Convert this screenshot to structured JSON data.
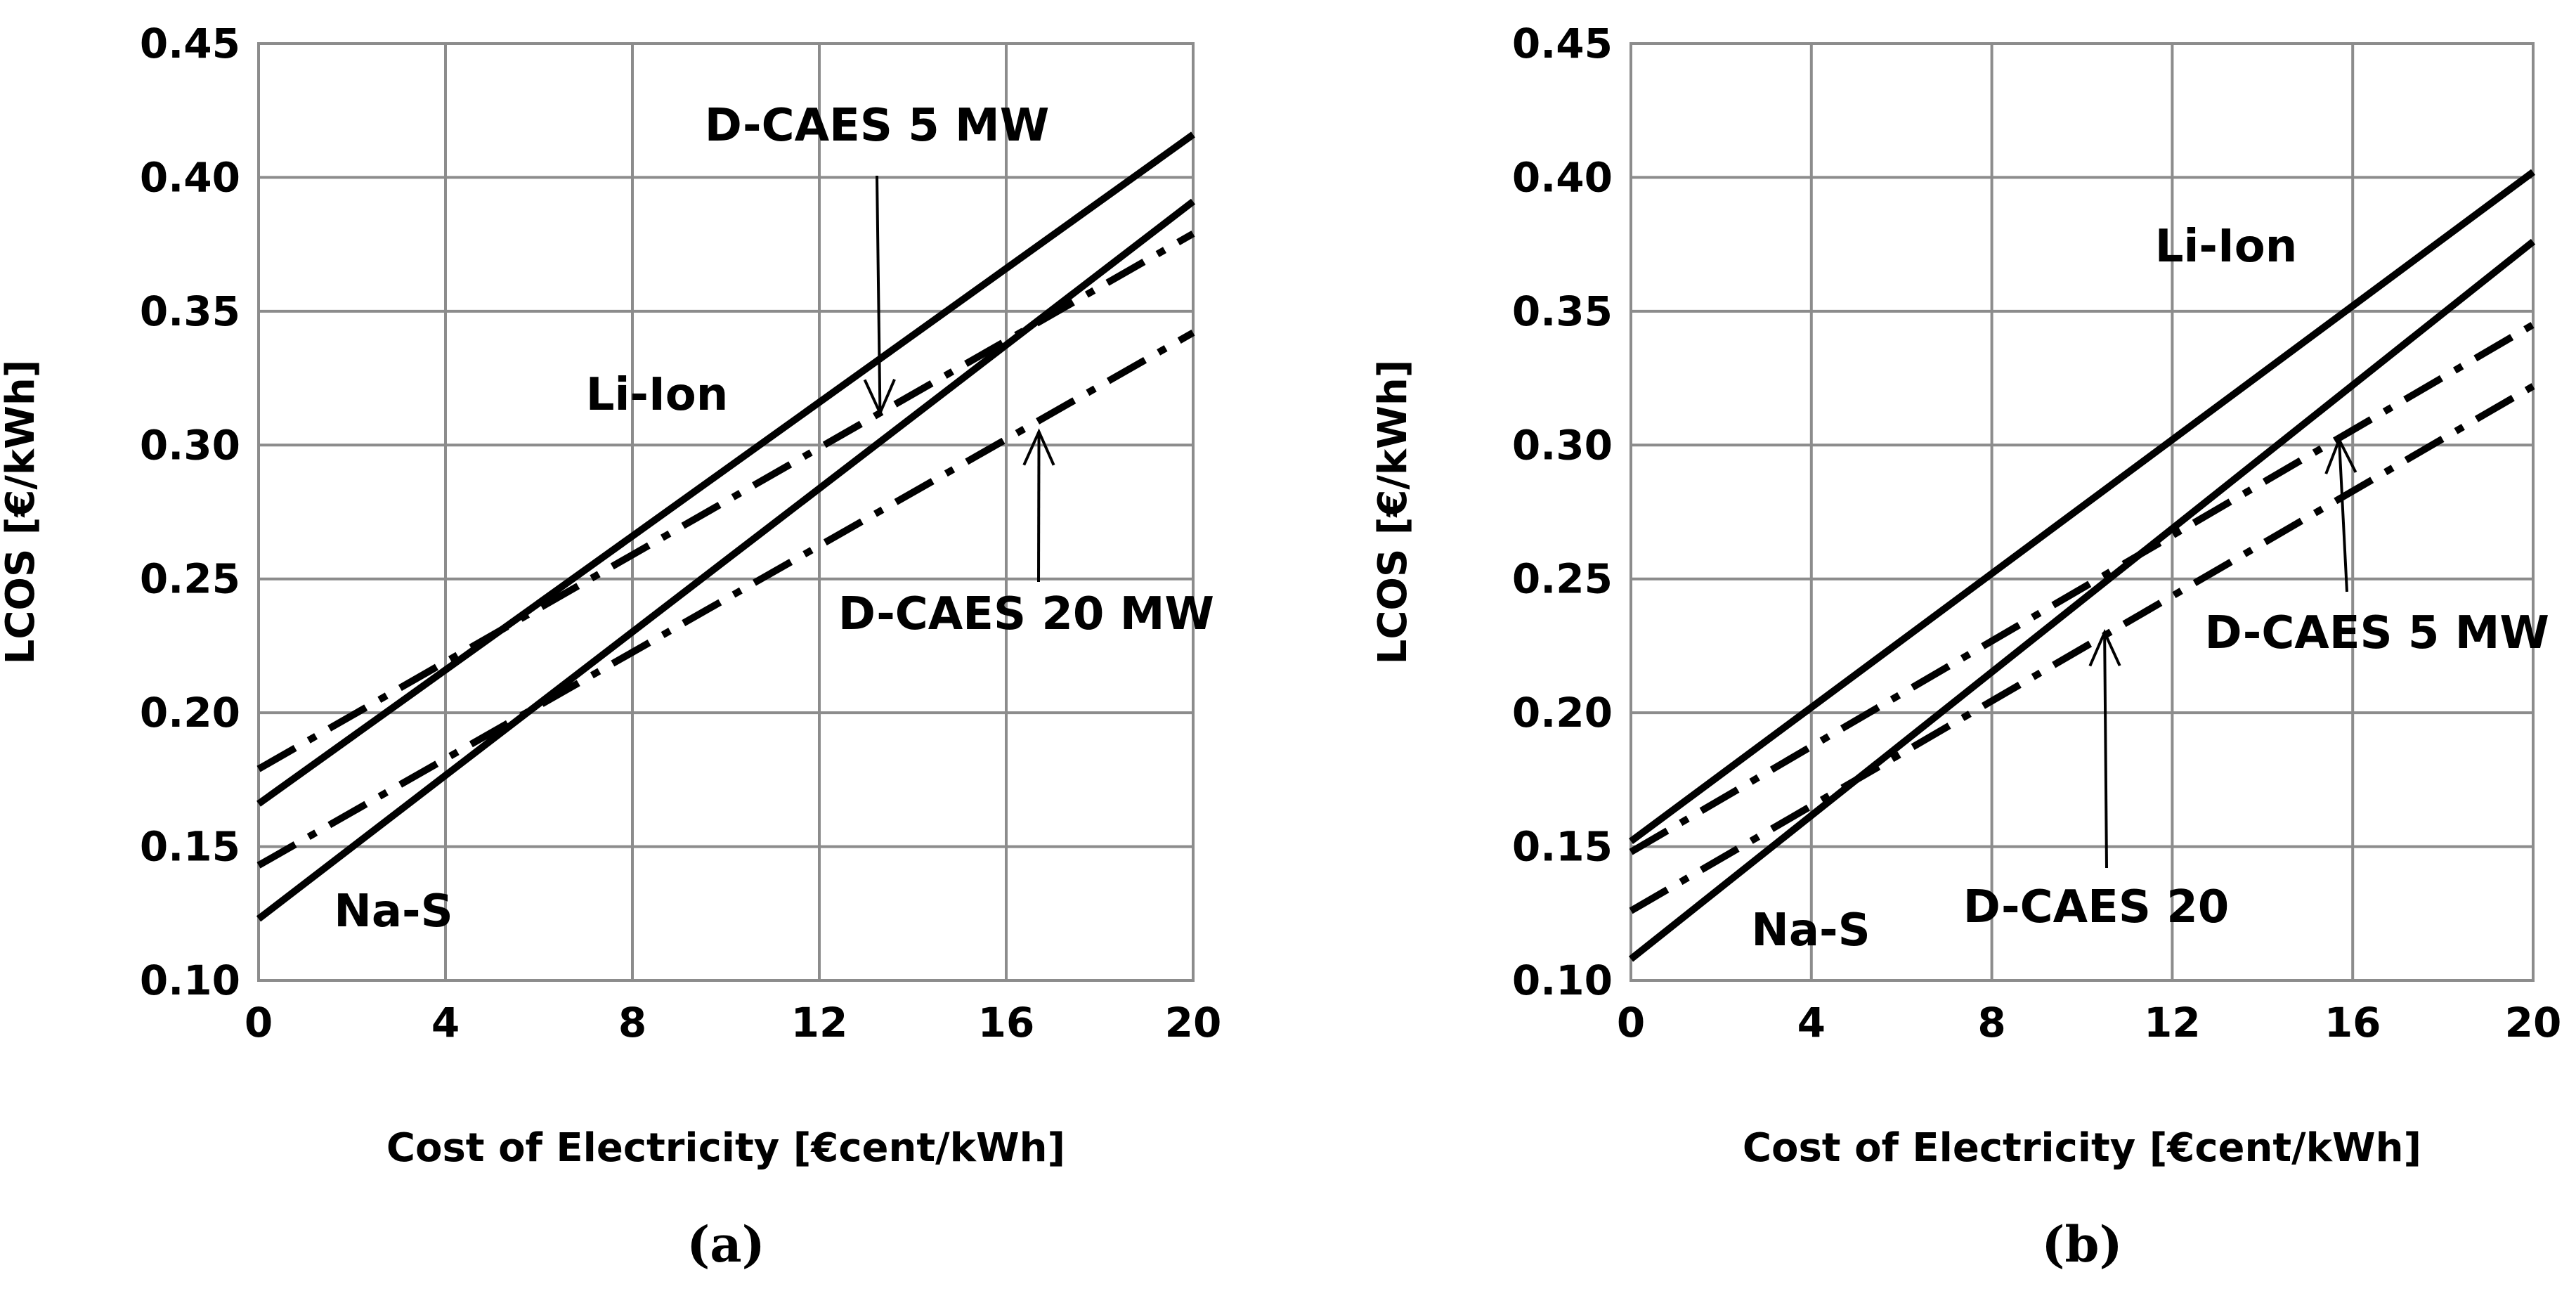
{
  "chart_data": [
    {
      "type": "line",
      "panel_label": "(a)",
      "xlabel": "Cost of Electricity [€cent/kWh]",
      "ylabel": "LCOS [€/kWh]",
      "xlim": [
        0,
        20
      ],
      "ylim": [
        0.1,
        0.45
      ],
      "x_ticks": [
        "0",
        "4",
        "8",
        "12",
        "16",
        "20"
      ],
      "y_ticks": [
        "0.10",
        "0.15",
        "0.20",
        "0.25",
        "0.30",
        "0.35",
        "0.40",
        "0.45"
      ],
      "grid": true,
      "series": [
        {
          "name": "Li-Ion",
          "style": "solid",
          "x": [
            0,
            20
          ],
          "y": [
            0.166,
            0.416
          ]
        },
        {
          "name": "Na-S",
          "style": "solid",
          "x": [
            0,
            20
          ],
          "y": [
            0.123,
            0.391
          ]
        },
        {
          "name": "D-CAES 5 MW",
          "style": "dash-dot",
          "x": [
            0,
            20
          ],
          "y": [
            0.179,
            0.379
          ]
        },
        {
          "name": "D-CAES 20 MW",
          "style": "dash-dot",
          "x": [
            0,
            20
          ],
          "y": [
            0.143,
            0.342
          ]
        }
      ],
      "annotations": [
        {
          "text": "D-CAES 5 MW",
          "target_x": 13.3,
          "target_y": 0.312
        },
        {
          "text": "Li-Ion"
        },
        {
          "text": "D-CAES 20 MW",
          "target_x": 16.7,
          "target_y": 0.305
        },
        {
          "text": "Na-S"
        }
      ]
    },
    {
      "type": "line",
      "panel_label": "(b)",
      "xlabel": "Cost of Electricity [€cent/kWh]",
      "ylabel": "LCOS [€/kWh]",
      "xlim": [
        0,
        20
      ],
      "ylim": [
        0.1,
        0.45
      ],
      "x_ticks": [
        "0",
        "4",
        "8",
        "12",
        "16",
        "20"
      ],
      "y_ticks": [
        "0.10",
        "0.15",
        "0.20",
        "0.25",
        "0.30",
        "0.35",
        "0.40",
        "0.45"
      ],
      "grid": true,
      "series": [
        {
          "name": "Li-Ion",
          "style": "solid",
          "x": [
            0,
            20
          ],
          "y": [
            0.152,
            0.402
          ]
        },
        {
          "name": "Na-S",
          "style": "solid",
          "x": [
            0,
            20
          ],
          "y": [
            0.108,
            0.376
          ]
        },
        {
          "name": "D-CAES 5 MW",
          "style": "dash-dot",
          "x": [
            0,
            20
          ],
          "y": [
            0.148,
            0.345
          ]
        },
        {
          "name": "D-CAES 20",
          "style": "dash-dot",
          "x": [
            0,
            20
          ],
          "y": [
            0.126,
            0.322
          ]
        }
      ],
      "annotations": [
        {
          "text": "Li-Ion"
        },
        {
          "text": "D-CAES 5 MW",
          "target_x": 15.7,
          "target_y": 0.302
        },
        {
          "text": "D-CAES 20",
          "target_x": 10.5,
          "target_y": 0.23
        },
        {
          "text": "Na-S"
        }
      ]
    }
  ]
}
